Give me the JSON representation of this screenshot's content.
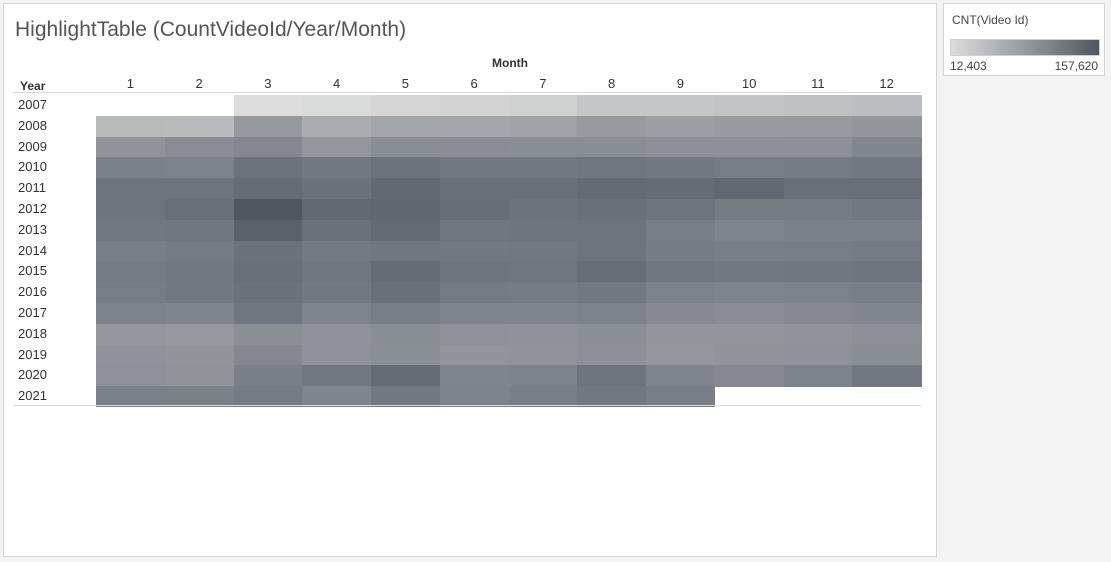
{
  "title": "HighlightTable (CountVideoId/Year/Month)",
  "chart_data": {
    "type": "heatmap",
    "title": "HighlightTable (CountVideoId/Year/Month)",
    "column_field": "Month",
    "row_field": "Year",
    "columns": [
      "1",
      "2",
      "3",
      "4",
      "5",
      "6",
      "7",
      "8",
      "9",
      "10",
      "11",
      "12"
    ],
    "rows": [
      "2007",
      "2008",
      "2009",
      "2010",
      "2011",
      "2012",
      "2013",
      "2014",
      "2015",
      "2016",
      "2017",
      "2018",
      "2019",
      "2020",
      "2021"
    ],
    "measure": "CNT(Video Id)",
    "color_range": [
      12403,
      157620
    ],
    "color_scale": [
      "#dcdcdc",
      "#505761"
    ],
    "values": [
      [
        null,
        null,
        12403,
        15000,
        20000,
        23000,
        26000,
        36000,
        36000,
        40000,
        43000,
        46000
      ],
      [
        51000,
        49000,
        86000,
        64000,
        73000,
        72000,
        75000,
        84000,
        80000,
        83000,
        84000,
        89000
      ],
      [
        91000,
        99000,
        104000,
        88000,
        98000,
        99000,
        98000,
        98000,
        94000,
        94000,
        94000,
        106000
      ],
      [
        112000,
        111000,
        127000,
        121000,
        127000,
        121000,
        121000,
        123000,
        120000,
        116000,
        117000,
        121000
      ],
      [
        126000,
        126000,
        135000,
        128000,
        138000,
        131000,
        131000,
        136000,
        135000,
        139000,
        132000,
        132000
      ],
      [
        126000,
        132000,
        157620,
        138000,
        140000,
        133000,
        127000,
        130000,
        125000,
        117000,
        117000,
        122000
      ],
      [
        122000,
        123000,
        147000,
        129000,
        136000,
        124000,
        125000,
        126000,
        115000,
        109000,
        112000,
        112000
      ],
      [
        114000,
        118000,
        128000,
        119000,
        123000,
        121000,
        122000,
        126000,
        117000,
        113000,
        116000,
        118000
      ],
      [
        118000,
        120000,
        131000,
        124000,
        135000,
        125000,
        124000,
        134000,
        123000,
        120000,
        123000,
        125000
      ],
      [
        116000,
        120000,
        128000,
        121000,
        130000,
        118000,
        117000,
        120000,
        111000,
        109000,
        111000,
        114000
      ],
      [
        111000,
        108000,
        123000,
        109000,
        115000,
        109000,
        109000,
        111000,
        102000,
        99000,
        103000,
        106000
      ],
      [
        88000,
        86000,
        97000,
        92000,
        98000,
        93000,
        92000,
        97000,
        89000,
        89000,
        91000,
        95000
      ],
      [
        92000,
        90000,
        104000,
        93000,
        97000,
        90000,
        91000,
        94000,
        88000,
        91000,
        92000,
        98000
      ],
      [
        93000,
        91000,
        113000,
        122000,
        135000,
        109000,
        110000,
        126000,
        108000,
        103000,
        110000,
        122000
      ],
      [
        112000,
        112000,
        118000,
        108000,
        121000,
        110000,
        114000,
        122000,
        114000,
        null,
        null,
        null
      ]
    ]
  },
  "legend": {
    "title": "CNT(Video Id)",
    "min_label": "12,403",
    "max_label": "157,620"
  }
}
